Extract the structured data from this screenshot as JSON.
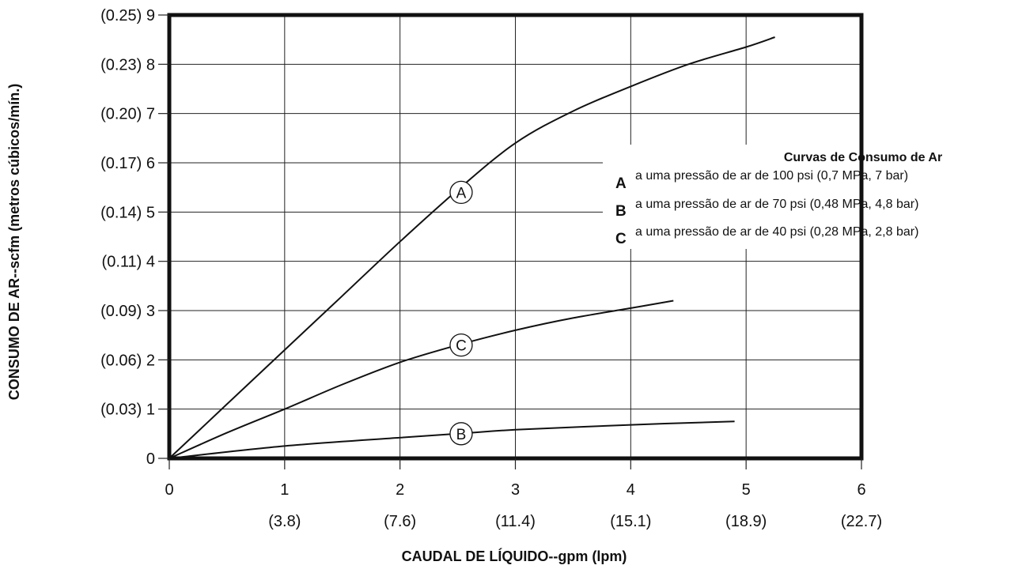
{
  "chart_data": {
    "type": "line",
    "xlabel": "CAUDAL DE LÍQUIDO--gpm (lpm)",
    "ylabel": "CONSUMO DE AR--scfm (metros cúbicos/mín.)",
    "xlim": [
      0,
      6
    ],
    "ylim": [
      0,
      9
    ],
    "grid": true,
    "x_ticks": [
      {
        "value": 0,
        "label": "0",
        "sublabel": ""
      },
      {
        "value": 1,
        "label": "1",
        "sublabel": "(3.8)"
      },
      {
        "value": 2,
        "label": "2",
        "sublabel": "(7.6)"
      },
      {
        "value": 3,
        "label": "3",
        "sublabel": "(11.4)"
      },
      {
        "value": 4,
        "label": "4",
        "sublabel": "(15.1)"
      },
      {
        "value": 5,
        "label": "5",
        "sublabel": "(18.9)"
      },
      {
        "value": 6,
        "label": "6",
        "sublabel": "(22.7)"
      }
    ],
    "y_ticks": [
      {
        "value": 0,
        "label": "0"
      },
      {
        "value": 1,
        "label": "(0.03) 1"
      },
      {
        "value": 2,
        "label": "(0.06) 2"
      },
      {
        "value": 3,
        "label": "(0.09) 3"
      },
      {
        "value": 4,
        "label": "(0.11) 4"
      },
      {
        "value": 5,
        "label": "(0.14) 5"
      },
      {
        "value": 6,
        "label": "(0.17) 6"
      },
      {
        "value": 7,
        "label": "(0.20) 7"
      },
      {
        "value": 8,
        "label": "(0.23) 8"
      },
      {
        "value": 9,
        "label": "(0.25) 9"
      }
    ],
    "series": [
      {
        "name": "A",
        "label_at": {
          "x": 2.53,
          "y": 5.4
        },
        "x": [
          0,
          0.5,
          1,
          1.5,
          2,
          2.5,
          3,
          3.5,
          4,
          4.5,
          5,
          5.25
        ],
        "y": [
          0,
          1.1,
          2.2,
          3.3,
          4.4,
          5.45,
          6.4,
          7.05,
          7.55,
          8.0,
          8.35,
          8.55
        ]
      },
      {
        "name": "B",
        "label_at": {
          "x": 2.53,
          "y": 0.5
        },
        "x": [
          0,
          1,
          2,
          2.5,
          3,
          4,
          4.9
        ],
        "y": [
          0,
          0.25,
          0.42,
          0.5,
          0.58,
          0.68,
          0.75
        ]
      },
      {
        "name": "C",
        "label_at": {
          "x": 2.53,
          "y": 2.3
        },
        "x": [
          0,
          0.5,
          1,
          1.5,
          2,
          2.5,
          3,
          3.5,
          4,
          4.37
        ],
        "y": [
          0,
          0.52,
          1.0,
          1.5,
          1.95,
          2.3,
          2.6,
          2.85,
          3.05,
          3.2
        ]
      }
    ],
    "legend": {
      "position": "right",
      "title": "Curvas de Consumo de Ar",
      "items": [
        {
          "key": "A",
          "text": "a uma pressão de ar de 100 psi (0,7 MPa, 7 bar)"
        },
        {
          "key": "B",
          "text": "a uma pressão de ar de 70 psi (0,48 MPa, 4,8 bar)"
        },
        {
          "key": "C",
          "text": "a uma pressão de ar de 40 psi (0,28 MPa, 2,8 bar)"
        }
      ]
    }
  }
}
